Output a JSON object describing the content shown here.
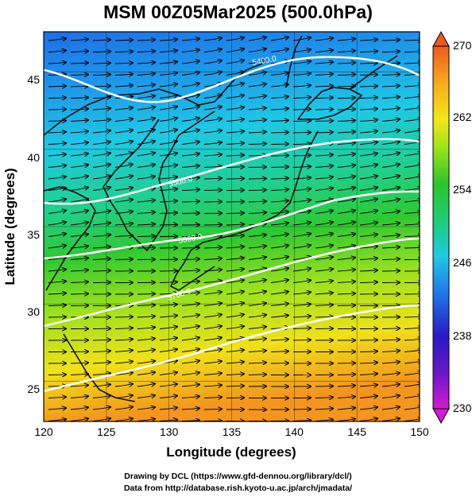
{
  "title": "MSM 00Z05Mar2025 (500.0hPa)",
  "credits": {
    "line1": "Drawing by DCL (https://www.gfd-dennou.org/library/dcl/)",
    "line2": "Data from http://database.rish.kyoto-u.ac.jp/arch/jmadata/"
  },
  "map": {
    "xlabel": "Longitude (degrees)",
    "ylabel": "Latitude  (degrees)",
    "xlim": [
      120,
      150
    ],
    "ylim": [
      22.4,
      47.6
    ],
    "xticks": [
      "120",
      "125",
      "130",
      "135",
      "140",
      "145",
      "150"
    ],
    "yticks": [
      "25",
      "30",
      "35",
      "40",
      "45"
    ],
    "contour_labels": [
      "5400.0",
      "5500.0",
      "5600.0",
      "5700.0"
    ],
    "colorbar": {
      "ticks": [
        "270",
        "262",
        "254",
        "246",
        "238",
        "230"
      ],
      "min": 230,
      "max": 270,
      "colors": [
        "#d21ad2",
        "#2a19c4",
        "#1f78e8",
        "#22c8e6",
        "#20cc74",
        "#2bc52b",
        "#9ee21e",
        "#f4e71a",
        "#f7a91d",
        "#ec5a21"
      ]
    }
  }
}
